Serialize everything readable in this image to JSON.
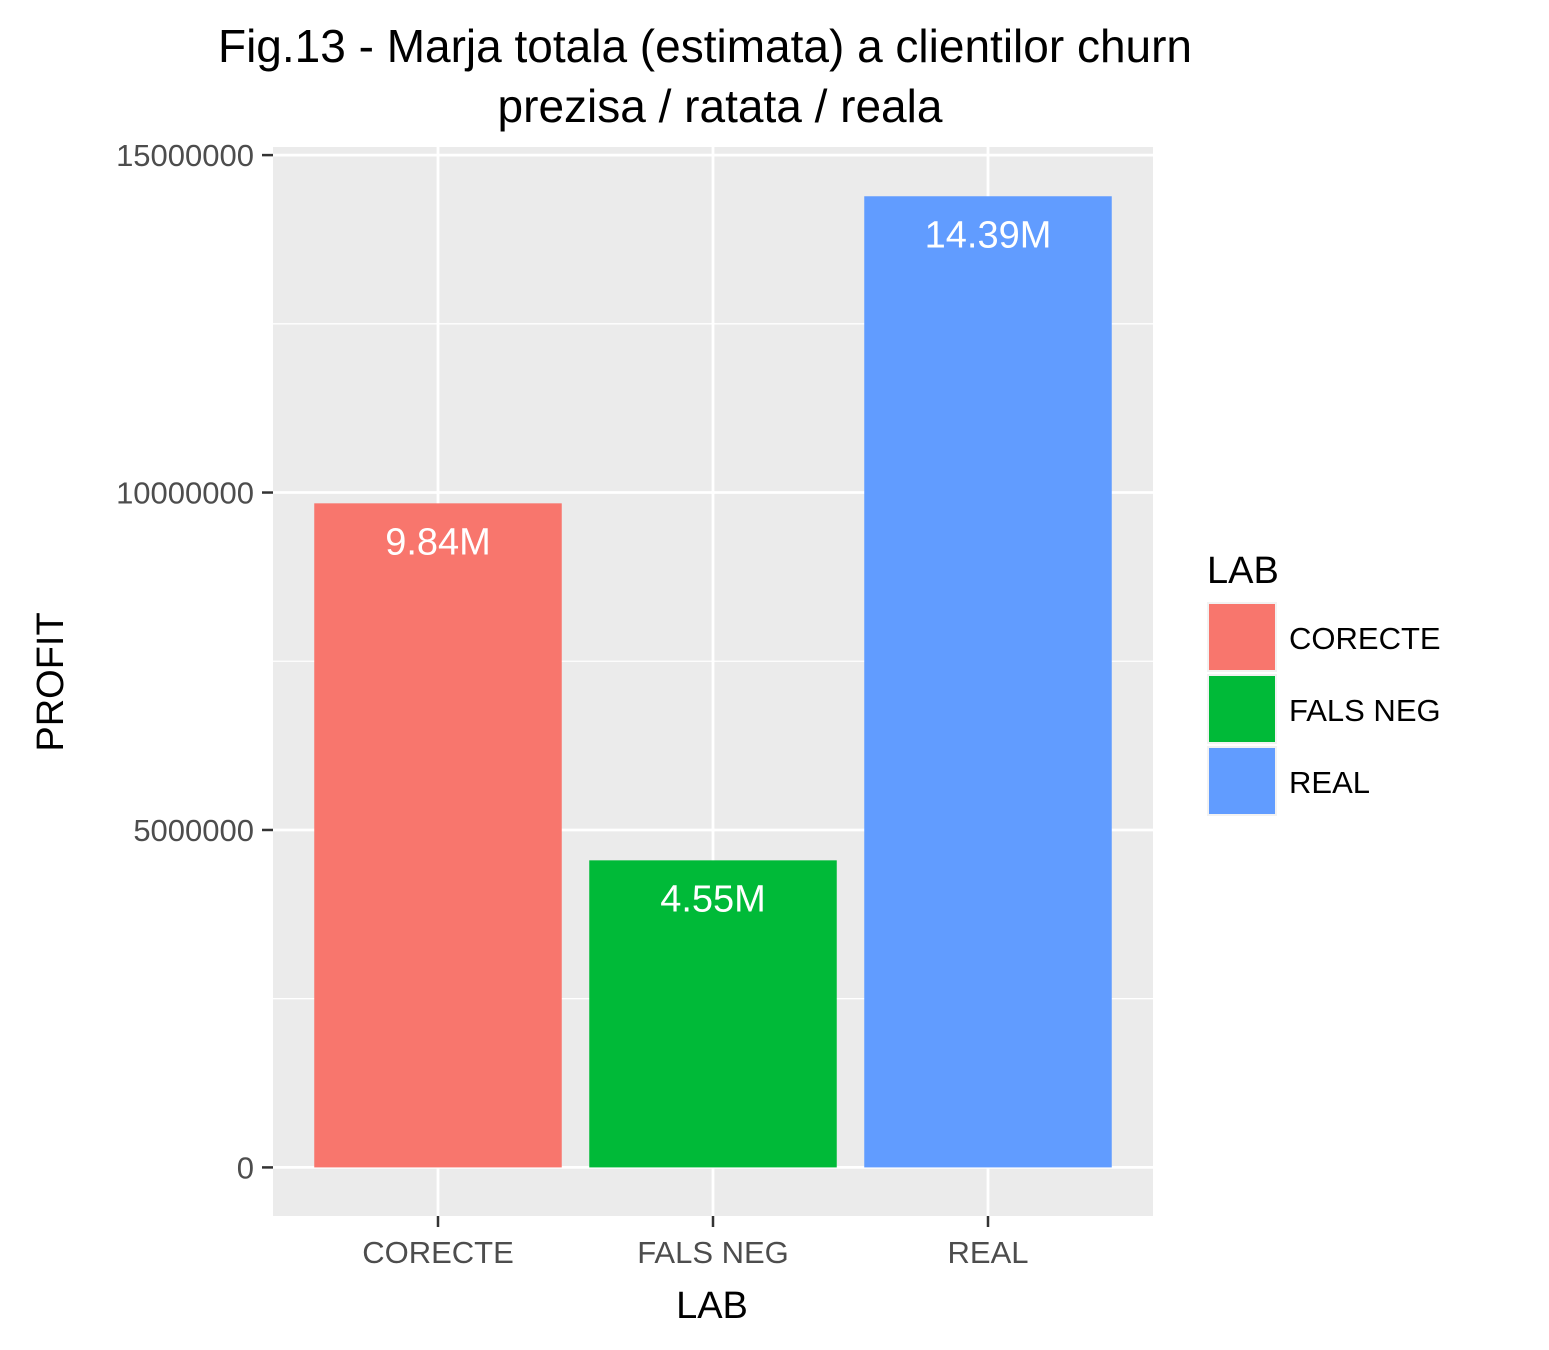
{
  "chart_data": {
    "type": "bar",
    "title_line1": "Fig.13 - Marja totala (estimata) a clientilor churn",
    "title_line2": "prezisa / ratata / reala",
    "xlabel": "LAB",
    "ylabel": "PROFIT",
    "categories": [
      "CORECTE",
      "FALS NEG",
      "REAL"
    ],
    "values": [
      9840000,
      4550000,
      14390000
    ],
    "data_labels": [
      "9.84M",
      "4.55M",
      "14.39M"
    ],
    "colors": [
      "#F8766D",
      "#00BA38",
      "#619CFF"
    ],
    "yticks": [
      0,
      5000000,
      10000000,
      15000000
    ],
    "ytick_labels": [
      "0",
      "5000000",
      "10000000",
      "15000000"
    ],
    "ylim": [
      -720000,
      15120000
    ],
    "grid": true,
    "panel_background": "#EBEBEB",
    "legend": {
      "title": "LAB",
      "placement": "right",
      "entries": [
        "CORECTE",
        "FALS NEG",
        "REAL"
      ]
    }
  }
}
